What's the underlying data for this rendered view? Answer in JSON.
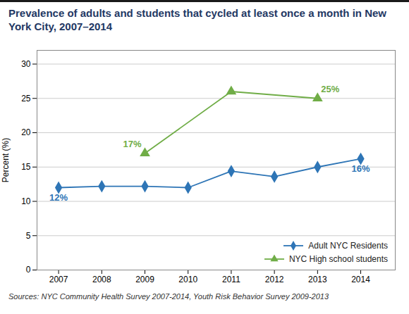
{
  "chart_data": {
    "type": "line",
    "title": "Prevalence of adults and students that cycled at least once a month in New York City, 2007–2014",
    "series": [
      {
        "name": "Adult NYC Residents",
        "color": "#2E75B6",
        "marker": "diamond",
        "x": [
          2007,
          2008,
          2009,
          2010,
          2011,
          2012,
          2013,
          2014
        ],
        "values": [
          12,
          12.2,
          12.2,
          12,
          14.4,
          13.6,
          15,
          16.2
        ]
      },
      {
        "name": "NYC High school students",
        "color": "#70AD47",
        "marker": "triangle",
        "x": [
          2009,
          2011,
          2013
        ],
        "values": [
          17,
          26,
          25
        ]
      }
    ],
    "ylabel": "Percent (%)",
    "xlim": [
      2006.5,
      2014.8
    ],
    "ylim": [
      0,
      32
    ],
    "xticks": [
      2007,
      2008,
      2009,
      2010,
      2011,
      2012,
      2013,
      2014
    ],
    "yticks": [
      0,
      5,
      10,
      15,
      20,
      25,
      30
    ],
    "grid": true,
    "legend": "lower right",
    "annotations": [
      {
        "text": "12%",
        "x": 2007,
        "y": 12,
        "color": "#2E75B6"
      },
      {
        "text": "16%",
        "x": 2014,
        "y": 16.2,
        "color": "#2E75B6"
      },
      {
        "text": "17%",
        "x": 2009,
        "y": 17,
        "color": "#70AD47"
      },
      {
        "text": "25%",
        "x": 2013,
        "y": 25,
        "color": "#70AD47"
      }
    ],
    "source": "Sources: NYC Community Health Survey 2007-2014, Youth Risk Behavior Survey 2009-2013"
  }
}
